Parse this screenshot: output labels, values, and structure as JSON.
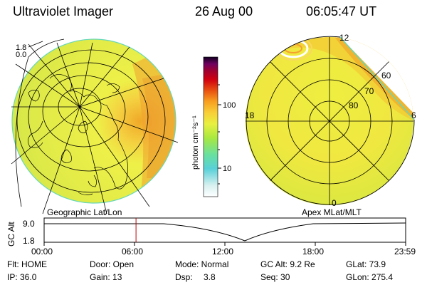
{
  "header": {
    "title": "Ultraviolet Imager",
    "date": "26 Aug 00",
    "time": "06:05:47 UT"
  },
  "colorbar": {
    "label": "photon cm⁻²s⁻¹",
    "ticks": [
      "100",
      "10"
    ],
    "colors": [
      "#ffffff",
      "#d8f0f0",
      "#58d0d8",
      "#68e0a0",
      "#a8e840",
      "#e8f040",
      "#f8d038",
      "#f8a020",
      "#e85010",
      "#d00010",
      "#a00030",
      "#700060",
      "#301040",
      "#000000"
    ]
  },
  "left_image": {
    "caption": "Geographic Lat/Lon",
    "lat_labels": [
      "1.8",
      "0.0"
    ]
  },
  "right_image": {
    "caption": "Apex MLat/MLT",
    "mlt_labels": {
      "top": "12",
      "left": "18",
      "right": "6",
      "bottom": "0"
    },
    "mlat_labels": [
      "60",
      "70",
      "80"
    ]
  },
  "alt_plot": {
    "ylabel": "GC Alt",
    "y_ticks": [
      "9.0",
      "1.8"
    ],
    "x_ticks": [
      "00:00",
      "06:00",
      "12:00",
      "18:00",
      "23:59"
    ],
    "current_time_hours": 6.1,
    "colors": {
      "marker": "#c00000"
    }
  },
  "status": {
    "row1": {
      "flt": "Flt: HOME",
      "door": "Door: Open",
      "mode": "Mode: Normal",
      "gc_alt": "GC Alt: 9.2 Re",
      "glat": "GLat:  73.9"
    },
    "row2": {
      "ip": "IP: 36.0",
      "gain": "Gain: 13",
      "dsp_label": "Dsp:",
      "dsp_value": "3.8",
      "seq": "Seq: 30",
      "glon": "GLon: 275.4"
    }
  }
}
